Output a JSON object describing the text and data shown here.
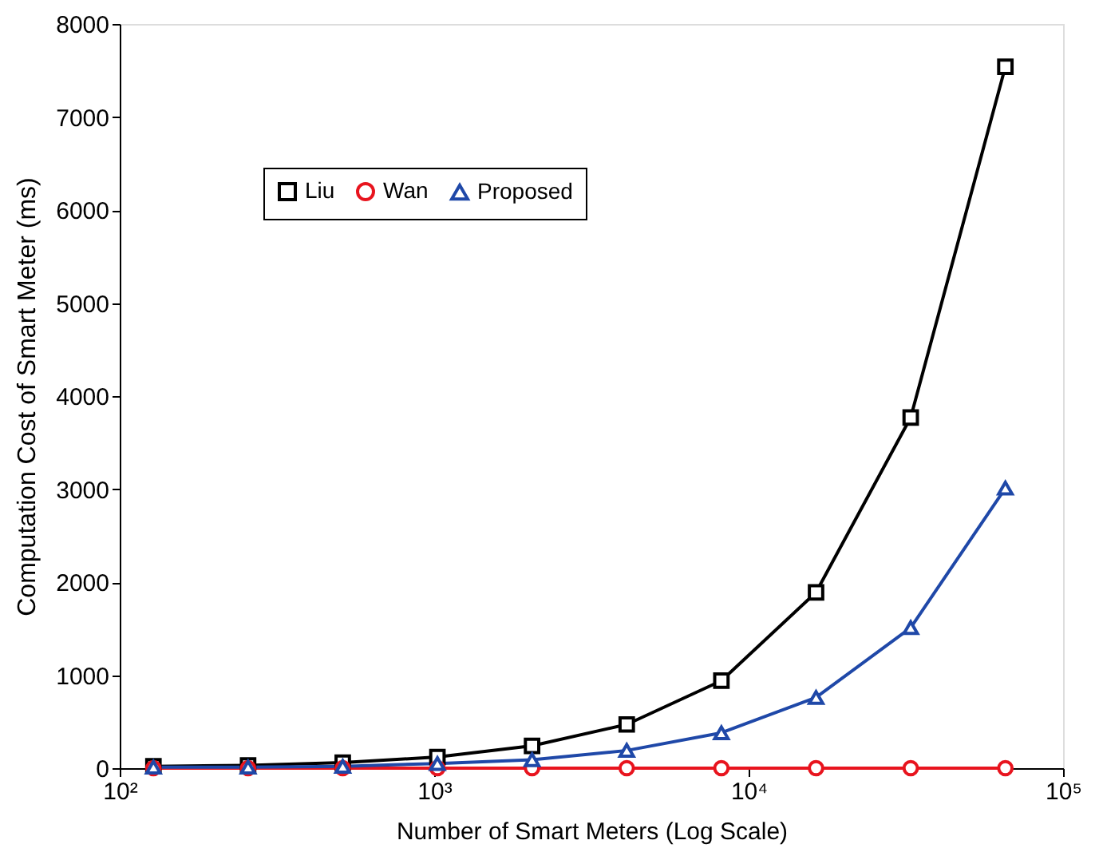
{
  "chart_data": {
    "type": "line",
    "xlabel": "Number of Smart Meters (Log Scale)",
    "ylabel": "Computation Cost of Smart Meter (ms)",
    "x": [
      128,
      256,
      512,
      1024,
      2048,
      4096,
      8192,
      16384,
      32768,
      65536
    ],
    "series": [
      {
        "name": "Liu",
        "color": "#000000",
        "marker": "square",
        "values": [
          20,
          30,
          60,
          120,
          240,
          470,
          940,
          1890,
          3770,
          7540
        ]
      },
      {
        "name": "Wan",
        "color": "#e8141e",
        "marker": "circle",
        "values": [
          0,
          0,
          0,
          0,
          0,
          0,
          0,
          0,
          0,
          0
        ]
      },
      {
        "name": "Proposed",
        "color": "#1f48a8",
        "marker": "triangle",
        "values": [
          10,
          10,
          20,
          50,
          90,
          190,
          380,
          760,
          1510,
          3010
        ]
      }
    ],
    "log": "x",
    "xlim": [
      100,
      100000
    ],
    "xticks": [
      {
        "value": 100,
        "label": "10²"
      },
      {
        "value": 1000,
        "label": "10³"
      },
      {
        "value": 10000,
        "label": "10⁴"
      },
      {
        "value": 100000,
        "label": "10⁵"
      }
    ],
    "ylim": [
      0,
      8000
    ],
    "yticks": [
      0,
      1000,
      2000,
      3000,
      4000,
      5000,
      6000,
      7000,
      8000
    ],
    "grid": false,
    "legend": "top left",
    "line_style": "solid"
  }
}
